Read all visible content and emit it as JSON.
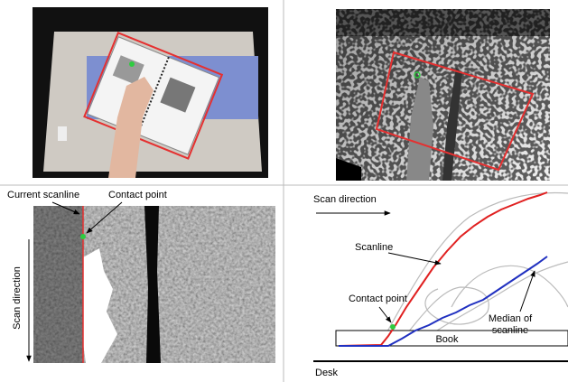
{
  "labels": {
    "current_scanline": "Current scanline",
    "contact_point_left": "Contact point",
    "scan_direction_left": "Scan direction",
    "scan_direction_right": "Scan direction",
    "scanline": "Scanline",
    "contact_point_right": "Contact point",
    "median_of_scanline": [
      "Median of",
      "scanline"
    ],
    "book": "Book",
    "desk": "Desk"
  }
}
